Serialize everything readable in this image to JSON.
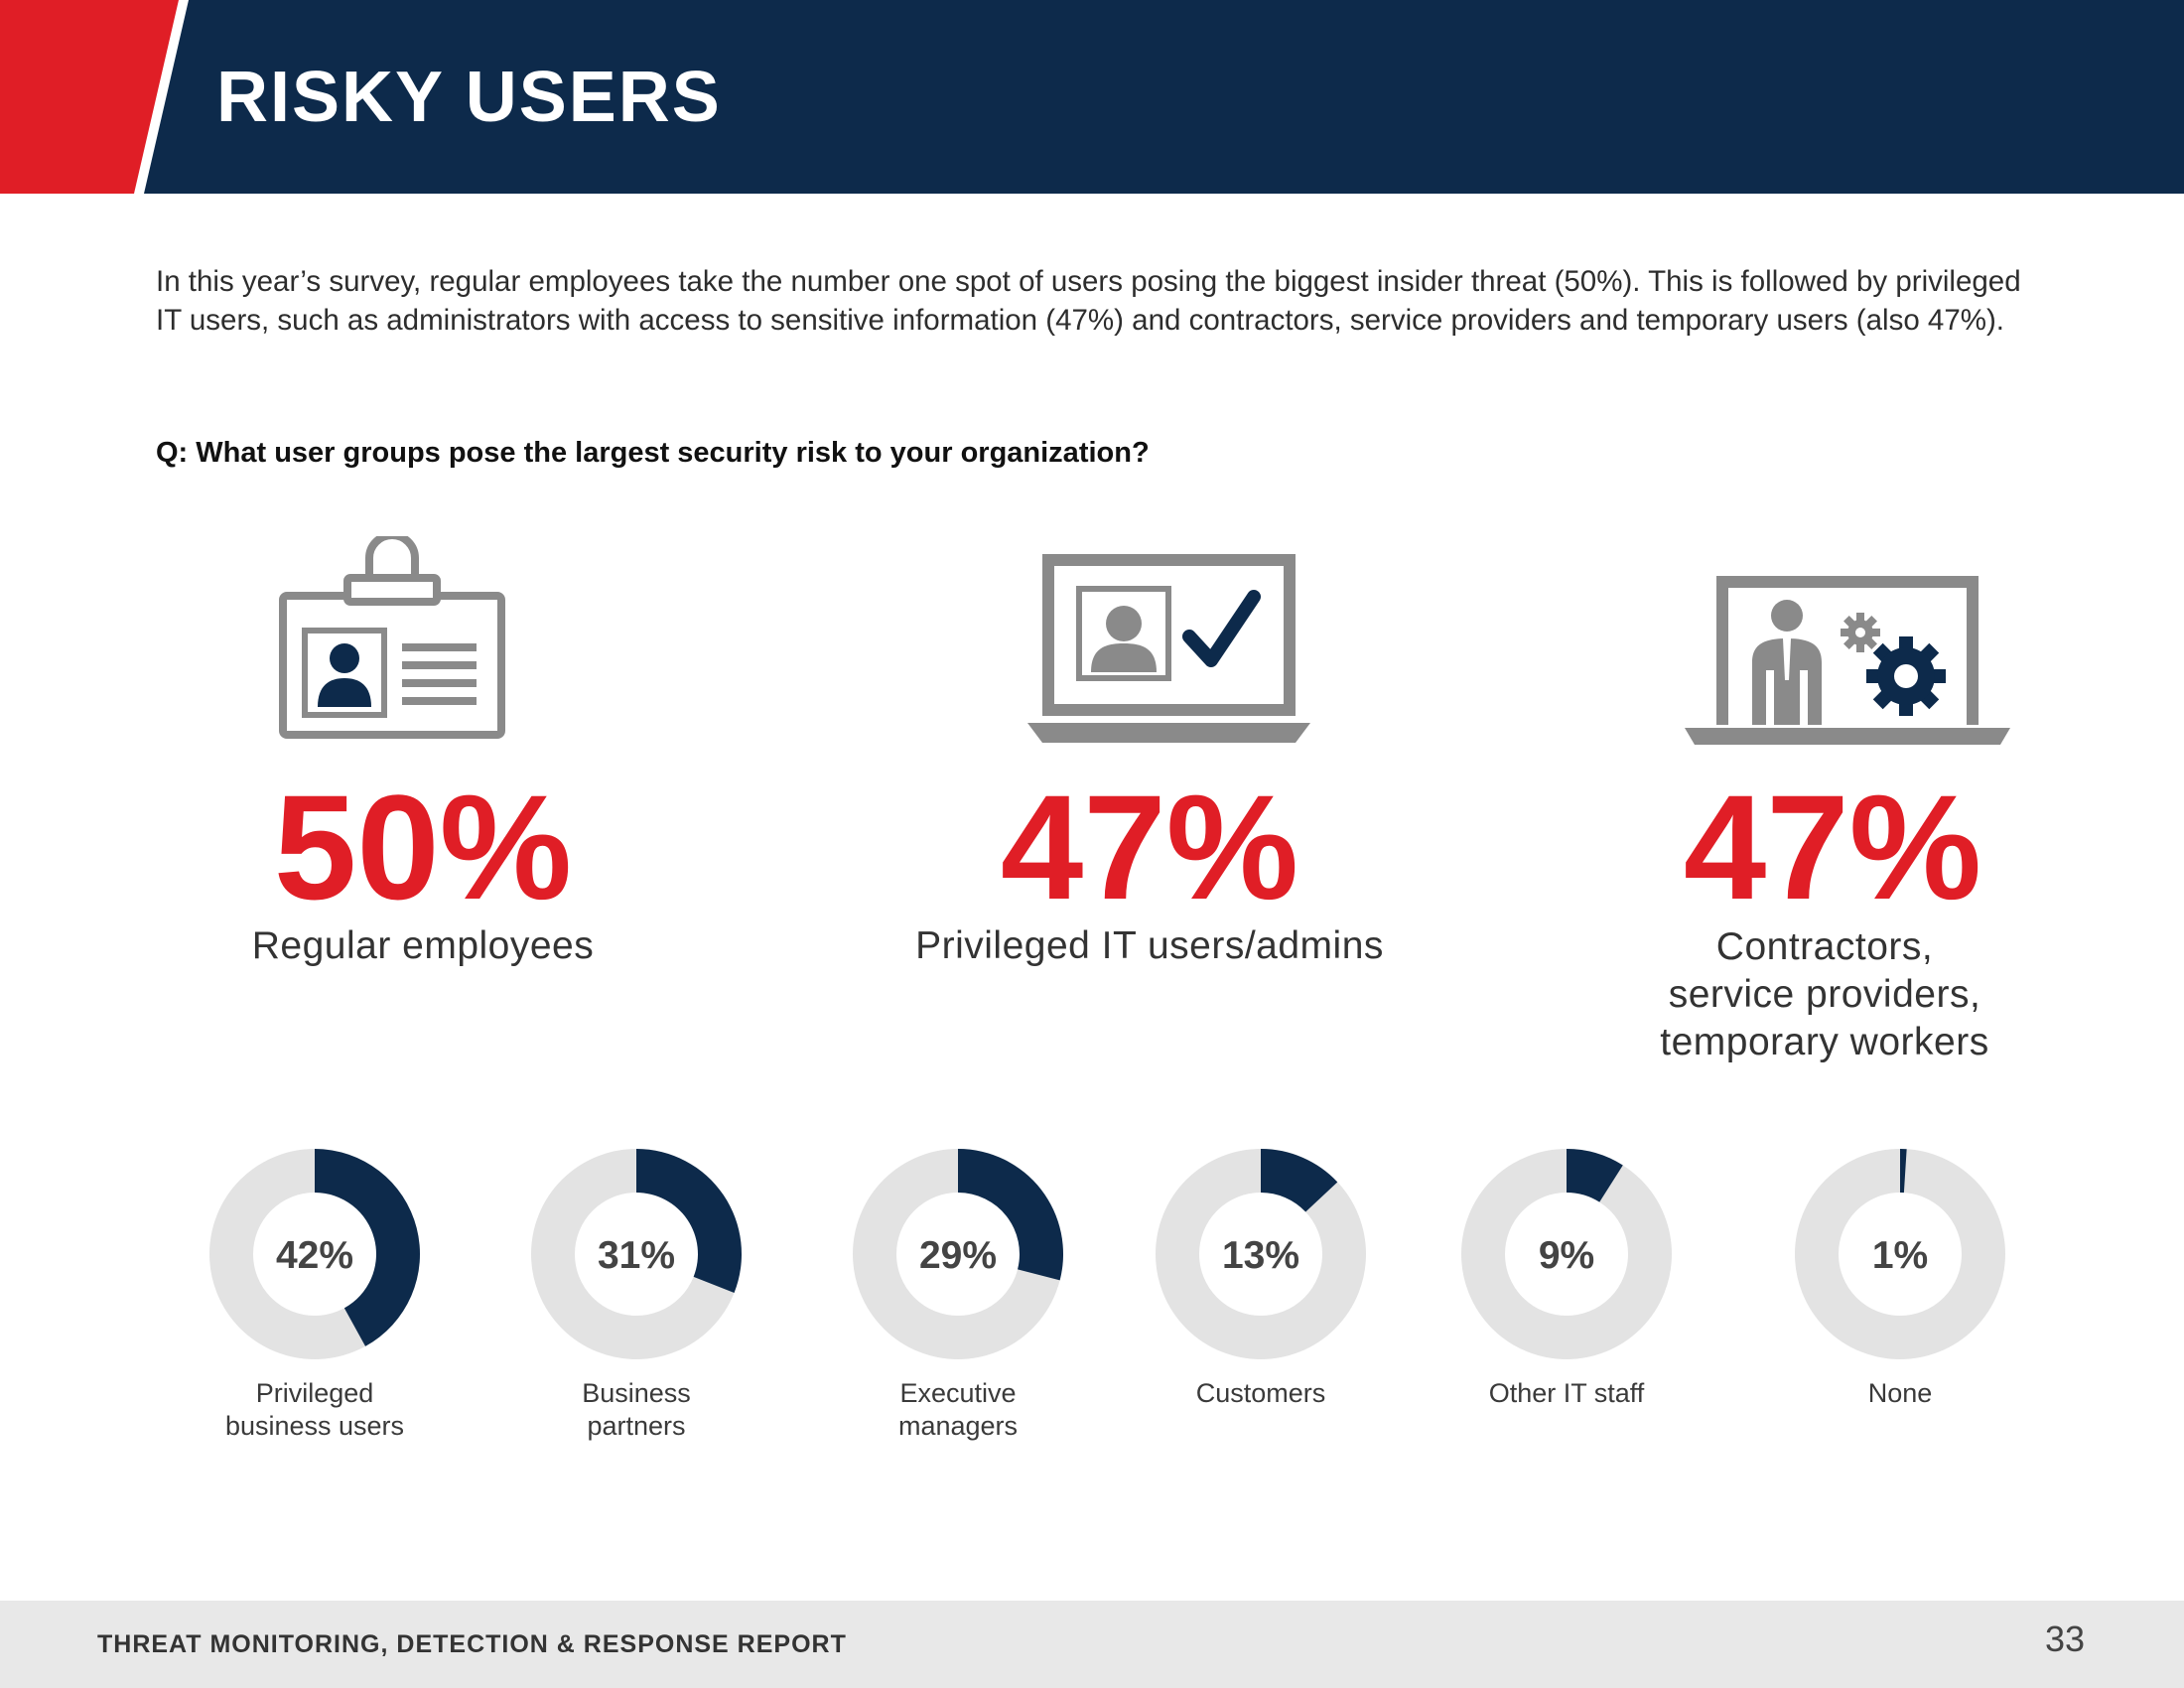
{
  "header": {
    "title": "RISKY USERS"
  },
  "intro": "In this year’s survey, regular employees take the number one spot of users posing the biggest insider threat (50%). This is followed by privileged IT users, such as administrators with access to sensitive information (47%) and contractors, service providers and temporary users (also 47%).",
  "question": "Q: What user groups pose the largest security risk to your organization?",
  "colors": {
    "navy": "#0d2a4b",
    "red": "#e01e26",
    "gray_icon": "#8a8a8a",
    "donut_track": "#e3e3e3",
    "footer_bg": "#e8e8e8"
  },
  "icons": {
    "regular_employees": "id-badge-icon",
    "privileged_it": "laptop-checkmark-icon",
    "contractors": "laptop-person-gears-icon"
  },
  "chart_data": [
    {
      "type": "stat",
      "items": [
        {
          "value": 50,
          "display": "50%",
          "label_lines": [
            "Regular employees"
          ]
        },
        {
          "value": 47,
          "display": "47%",
          "label_lines": [
            "Privileged IT users/admins"
          ]
        },
        {
          "value": 47,
          "display": "47%",
          "label_lines": [
            "Contractors,",
            "service providers,",
            "temporary workers"
          ]
        }
      ]
    },
    {
      "type": "pie",
      "style": "donut",
      "items": [
        {
          "value": 42,
          "display": "42%",
          "label_lines": [
            "Privileged",
            "business users"
          ]
        },
        {
          "value": 31,
          "display": "31%",
          "label_lines": [
            "Business",
            "partners"
          ]
        },
        {
          "value": 29,
          "display": "29%",
          "label_lines": [
            "Executive",
            "managers"
          ]
        },
        {
          "value": 13,
          "display": "13%",
          "label_lines": [
            "Customers"
          ]
        },
        {
          "value": 9,
          "display": "9%",
          "label_lines": [
            "Other IT staff"
          ]
        },
        {
          "value": 1,
          "display": "1%",
          "label_lines": [
            "None"
          ]
        }
      ]
    }
  ],
  "footer": {
    "title": "THREAT MONITORING, DETECTION & RESPONSE REPORT",
    "page_number": "33"
  }
}
